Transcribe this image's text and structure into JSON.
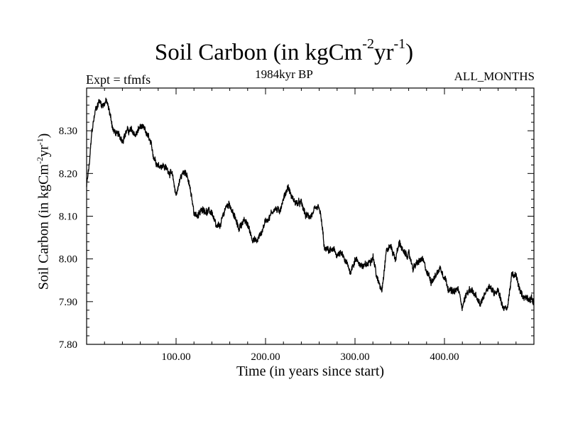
{
  "chart_data": {
    "type": "line",
    "title": {
      "main": "Soil Carbon (in kgCm",
      "sup1": "-2",
      "mid": "yr",
      "sup2": "-1",
      "end": ")"
    },
    "subtitle": "1984kyr BP",
    "left_annotation": "Expt = tfmfs",
    "right_annotation": "ALL_MONTHS",
    "xlabel": "Time (in years since start)",
    "ylabel": {
      "main": "Soil Carbon (in kgCm",
      "sup1": "-2",
      "mid": "yr",
      "sup2": "-1",
      "end": ")"
    },
    "xlim": [
      0,
      500
    ],
    "ylim": [
      7.8,
      8.4
    ],
    "xticks": [
      100,
      200,
      300,
      400
    ],
    "xtick_labels": [
      "100.00",
      "200.00",
      "300.00",
      "400.00"
    ],
    "yticks": [
      7.8,
      7.9,
      8.0,
      8.1,
      8.2,
      8.3
    ],
    "ytick_labels": [
      "7.80",
      "7.90",
      "8.00",
      "8.10",
      "8.20",
      "8.30"
    ],
    "series": [
      {
        "name": "Soil Carbon",
        "color": "#000000",
        "x": [
          0,
          3,
          6,
          10,
          14,
          18,
          22,
          26,
          30,
          35,
          40,
          45,
          50,
          55,
          60,
          65,
          70,
          75,
          80,
          85,
          90,
          95,
          100,
          105,
          110,
          115,
          120,
          125,
          130,
          135,
          140,
          145,
          150,
          155,
          160,
          165,
          170,
          175,
          180,
          185,
          190,
          195,
          200,
          205,
          210,
          215,
          220,
          225,
          230,
          235,
          240,
          245,
          250,
          255,
          260,
          263,
          266,
          270,
          275,
          280,
          285,
          290,
          295,
          300,
          305,
          310,
          315,
          320,
          325,
          330,
          335,
          340,
          345,
          350,
          355,
          360,
          365,
          370,
          375,
          380,
          385,
          390,
          395,
          400,
          405,
          410,
          415,
          420,
          425,
          430,
          435,
          440,
          445,
          450,
          455,
          460,
          465,
          470,
          475,
          480,
          485,
          490,
          495,
          500
        ],
        "values": [
          8.17,
          8.22,
          8.3,
          8.35,
          8.37,
          8.36,
          8.37,
          8.34,
          8.3,
          8.29,
          8.28,
          8.3,
          8.3,
          8.29,
          8.31,
          8.3,
          8.28,
          8.24,
          8.22,
          8.22,
          8.21,
          8.2,
          8.15,
          8.19,
          8.21,
          8.17,
          8.11,
          8.1,
          8.12,
          8.11,
          8.11,
          8.07,
          8.08,
          8.12,
          8.13,
          8.1,
          8.07,
          8.09,
          8.08,
          8.05,
          8.04,
          8.06,
          8.09,
          8.1,
          8.12,
          8.11,
          8.14,
          8.17,
          8.14,
          8.13,
          8.13,
          8.1,
          8.1,
          8.11,
          8.12,
          8.08,
          8.02,
          8.02,
          8.02,
          8.01,
          8.01,
          7.99,
          7.97,
          8.0,
          7.99,
          7.98,
          7.99,
          8.01,
          7.95,
          7.93,
          8.02,
          8.03,
          8.0,
          8.04,
          8.01,
          8.01,
          7.98,
          7.99,
          8.0,
          7.97,
          7.95,
          7.96,
          7.98,
          7.96,
          7.93,
          7.92,
          7.93,
          7.89,
          7.92,
          7.93,
          7.91,
          7.89,
          7.92,
          7.94,
          7.92,
          7.93,
          7.89,
          7.88,
          7.96,
          7.96,
          7.92,
          7.91,
          7.91,
          7.9
        ]
      }
    ]
  }
}
